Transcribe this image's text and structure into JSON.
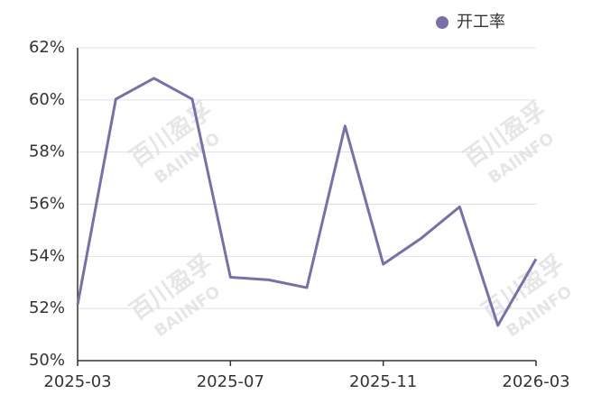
{
  "chart_data": {
    "type": "line",
    "categories": [
      "2025-03",
      null,
      null,
      null,
      "2025-07",
      null,
      null,
      null,
      "2025-11",
      null,
      null,
      null,
      "2026-03"
    ],
    "series": [
      {
        "name": "开工率",
        "color": "#7b6fa6",
        "values": [
          52.15,
          60.03,
          60.83,
          60.03,
          53.2,
          53.1,
          52.8,
          59.0,
          53.7,
          54.7,
          55.9,
          51.35,
          53.9
        ]
      }
    ],
    "ylim": [
      50,
      62
    ],
    "yticks": [
      {
        "value": 50,
        "label": "50%"
      },
      {
        "value": 52,
        "label": "52%"
      },
      {
        "value": 54,
        "label": "54%"
      },
      {
        "value": 56,
        "label": "56%"
      },
      {
        "value": 58,
        "label": "58%"
      },
      {
        "value": 60,
        "label": "60%"
      },
      {
        "value": 62,
        "label": "62%"
      }
    ],
    "grid": true,
    "legend": "top-right",
    "watermark": [
      "百川盈孚",
      "BAIINFO"
    ]
  }
}
